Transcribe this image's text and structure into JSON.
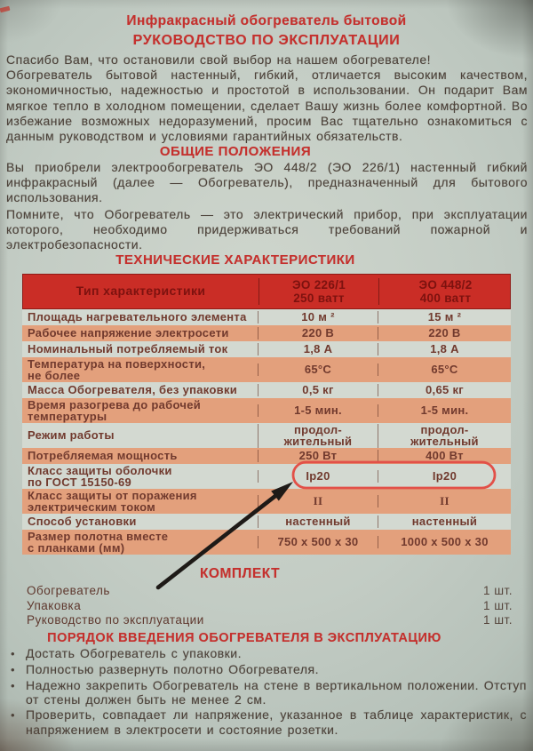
{
  "doc": {
    "title": "Инфракрасный обогреватель бытовой",
    "subtitle": "РУКОВОДСТВО ПО ЭКСПЛУАТАЦИИ",
    "intro_line": "Спасибо Вам, что остановили свой выбор на нашем обогревателе!",
    "intro_text": "Обогреватель бытовой настенный, гибкий, отличается высоким качеством, экономичностью, надежностью и простотой в использовании. Он подарит Вам мягкое тепло в холодном помещении, сделает Вашу жизнь более комфортной. Во избежание возможных недоразумений, просим Вас тщательно ознакомиться с данным руководством и условиями гарантийных обязательств."
  },
  "general": {
    "heading": "ОБЩИЕ ПОЛОЖЕНИЯ",
    "para1": "Вы приобрели электрообогреватель ЭО 448/2 (ЭО 226/1) настенный гибкий инфракрасный (далее — Обогреватель), предназначенный для бытового использования.",
    "para2": "Помните, что Обогреватель — это электрический прибор, при эксплуатации которого, необходимо придерживаться требований пожарной и электробезопасности."
  },
  "specs": {
    "heading": "ТЕХНИЧЕСКИЕ ХАРАКТЕРИСТИКИ",
    "table": {
      "header": {
        "label": "Тип характеристики",
        "col1": "ЭО 226/1\n250 ватт",
        "col2": "ЭО 448/2\n400 ватт"
      },
      "rows": [
        {
          "label": "Площадь нагревательного элемента",
          "v1": "10 м ²",
          "v2": "15 м ²",
          "h": "single"
        },
        {
          "label": "Рабочее напряжение электросети",
          "v1": "220 В",
          "v2": "220 В",
          "h": "single"
        },
        {
          "label": "Номинальный потребляемый ток",
          "v1": "1,8 А",
          "v2": "1,8 А",
          "h": "single"
        },
        {
          "label": "Температура на поверхности,\nне более",
          "v1": "65°С",
          "v2": "65°С",
          "h": "double"
        },
        {
          "label": "Масса Обогревателя, без упаковки",
          "v1": "0,5 кг",
          "v2": "0,65 кг",
          "h": "single"
        },
        {
          "label": "Время разогрева до рабочей\nтемпературы",
          "v1": "1-5 мин.",
          "v2": "1-5 мин.",
          "h": "double"
        },
        {
          "label": "Режим работы",
          "v1": "продол-\nжительный",
          "v2": "продол-\nжительный",
          "h": "double"
        },
        {
          "label": "Потребляемая мощность",
          "v1": "250 Вт",
          "v2": "400 Вт",
          "h": "single"
        },
        {
          "label": "Класс защиты оболочки\nпо ГОСТ 15150-69",
          "v1": "Ip20",
          "v2": "Ip20",
          "h": "double",
          "highlighted": true
        },
        {
          "label": "Класс защиты от поражения\nэлектрическим током",
          "v1": "II",
          "v2": "II",
          "h": "double",
          "serif": true
        },
        {
          "label": "Способ установки",
          "v1": "настенный",
          "v2": "настенный",
          "h": "single"
        },
        {
          "label": "Размер полотна вместе\nс планками (мм)",
          "v1": "750 x 500 x 30",
          "v2": "1000 x 500 x 30",
          "h": "double"
        }
      ]
    }
  },
  "kit": {
    "heading": "КОМПЛЕКТ",
    "items": [
      {
        "label": "Обогреватель",
        "qty": "1 шт."
      },
      {
        "label": "Упаковка",
        "qty": "1 шт."
      },
      {
        "label": "Руководство по эксплуатации",
        "qty": "1 шт."
      }
    ]
  },
  "startup": {
    "heading": "ПОРЯДОК ВВЕДЕНИЯ ОБОГРЕВАТЕЛЯ В ЭКСПЛУАТАЦИЮ",
    "bullets": [
      "Достать Обогреватель с упаковки.",
      "Полностью развернуть полотно Обогревателя.",
      "Надежно закрепить Обогреватель на стене в вертикальном положении. Отступ от стены должен быть не менее 2 см.",
      "Проверить, совпадает ли напряжение, указанное в таблице характеристик, с напряжением в электросети и состояние розетки."
    ]
  },
  "annotations": {
    "highlighted_value": "Ip20",
    "ring_color": "#e25048",
    "arrow_color": "#1e1a17"
  },
  "colors": {
    "paper": "#c2cbc3",
    "heading_red": "#c5302d",
    "body_text": "#4c423a",
    "table_text": "#713a2e",
    "table_header_bg": "#ca2d26",
    "table_header_text": "#7d120f",
    "row_salmon": "#e3a07c",
    "row_light": "#d3d9d1"
  }
}
